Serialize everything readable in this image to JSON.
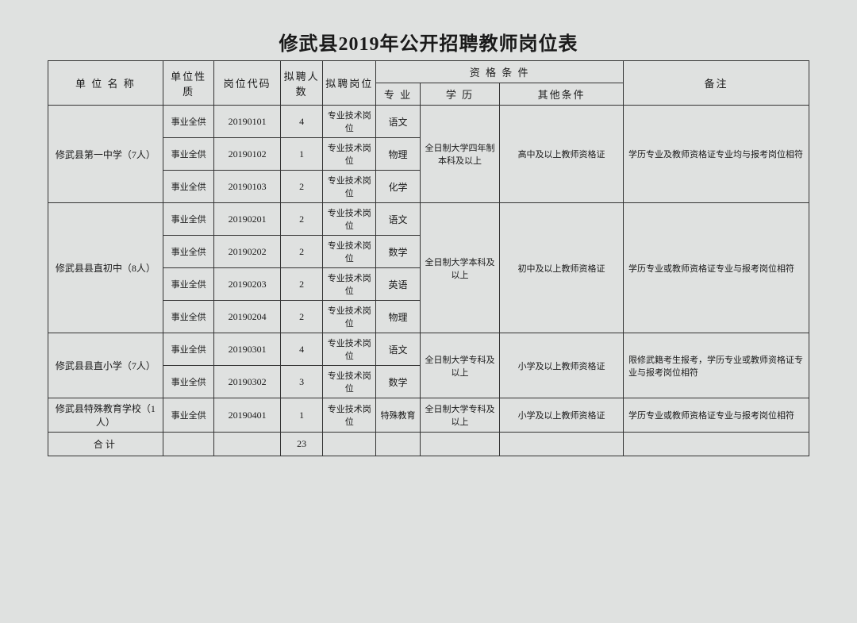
{
  "title": "修武县2019年公开招聘教师岗位表",
  "headers": {
    "unit_name": "单 位 名 称",
    "unit_nature": "单位性质",
    "position_code": "岗位代码",
    "hire_count": "拟聘人数",
    "hire_position": "拟聘岗位",
    "qualification": "资 格 条 件",
    "major": "专 业",
    "education": "学 历",
    "other_condition": "其他条件",
    "remark": "备注"
  },
  "table_style": {
    "border_color": "#333333",
    "background_color": "#dfe1e0",
    "text_color": "#1a1a1a",
    "title_fontsize": 24,
    "header_fontsize": 13,
    "cell_fontsize": 12,
    "small_fontsize": 11
  },
  "groups": [
    {
      "unit_name": "修武县第一中学（7人）",
      "education": "全日制大学四年制本科及以上",
      "other_condition": "高中及以上教师资格证",
      "remark": "学历专业及教师资格证专业均与报考岗位相符",
      "rows": [
        {
          "nature": "事业全供",
          "code": "20190101",
          "count": "4",
          "position": "专业技术岗位",
          "major": "语文"
        },
        {
          "nature": "事业全供",
          "code": "20190102",
          "count": "1",
          "position": "专业技术岗位",
          "major": "物理"
        },
        {
          "nature": "事业全供",
          "code": "20190103",
          "count": "2",
          "position": "专业技术岗位",
          "major": "化学"
        }
      ]
    },
    {
      "unit_name": "修武县县直初中（8人）",
      "education": "全日制大学本科及以上",
      "other_condition": "初中及以上教师资格证",
      "remark": "学历专业或教师资格证专业与报考岗位相符",
      "rows": [
        {
          "nature": "事业全供",
          "code": "20190201",
          "count": "2",
          "position": "专业技术岗位",
          "major": "语文"
        },
        {
          "nature": "事业全供",
          "code": "20190202",
          "count": "2",
          "position": "专业技术岗位",
          "major": "数学"
        },
        {
          "nature": "事业全供",
          "code": "20190203",
          "count": "2",
          "position": "专业技术岗位",
          "major": "英语"
        },
        {
          "nature": "事业全供",
          "code": "20190204",
          "count": "2",
          "position": "专业技术岗位",
          "major": "物理"
        }
      ]
    },
    {
      "unit_name": "修武县县直小学（7人）",
      "education": "全日制大学专科及以上",
      "other_condition": "小学及以上教师资格证",
      "remark": "限修武籍考生报考，学历专业或教师资格证专业与报考岗位相符",
      "rows": [
        {
          "nature": "事业全供",
          "code": "20190301",
          "count": "4",
          "position": "专业技术岗位",
          "major": "语文"
        },
        {
          "nature": "事业全供",
          "code": "20190302",
          "count": "3",
          "position": "专业技术岗位",
          "major": "数学"
        }
      ]
    },
    {
      "unit_name": "修武县特殊教育学校（1人）",
      "education": "全日制大学专科及以上",
      "other_condition": "小学及以上教师资格证",
      "remark": "学历专业或教师资格证专业与报考岗位相符",
      "rows": [
        {
          "nature": "事业全供",
          "code": "20190401",
          "count": "1",
          "position": "专业技术岗位",
          "major": "特殊教育"
        }
      ]
    }
  ],
  "total": {
    "label": "合计",
    "count": "23"
  }
}
